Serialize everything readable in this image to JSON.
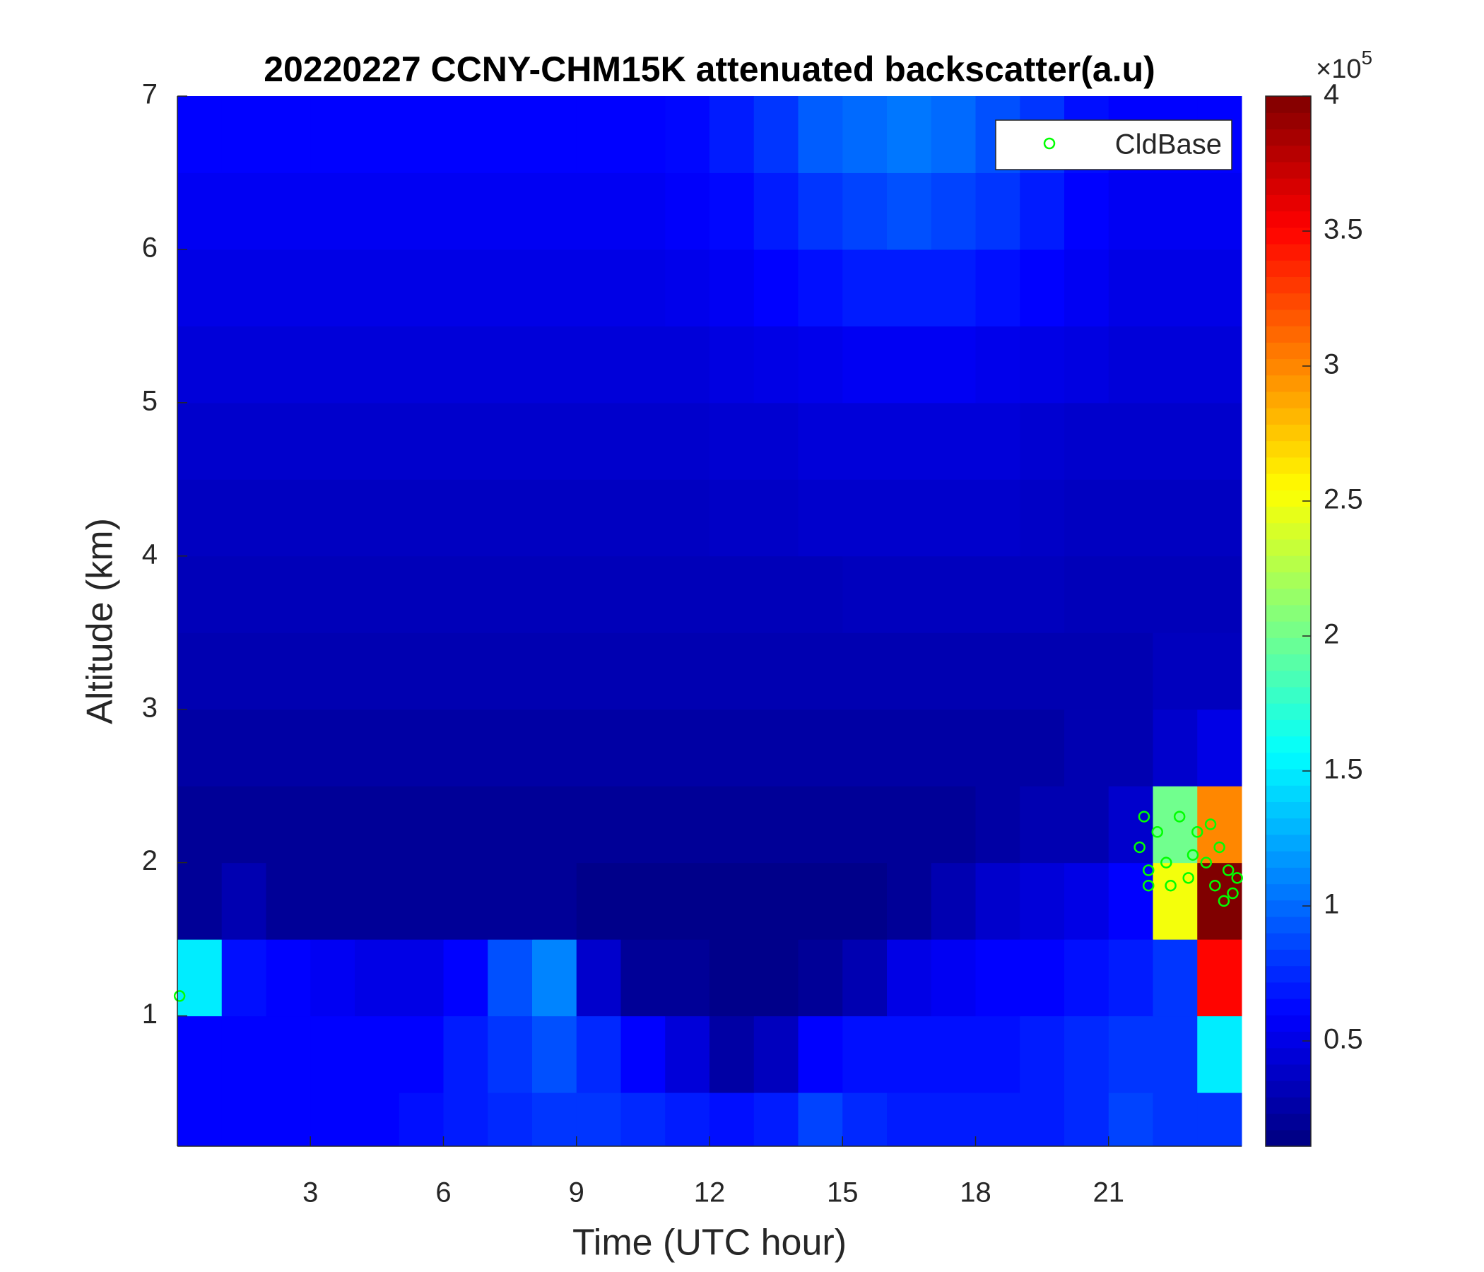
{
  "chart_data": {
    "type": "heatmap",
    "title": "20220227 CCNY-CHM15K attenuated backscatter(a.u)",
    "xlabel": "Time (UTC hour)",
    "ylabel": "Altitude (km)",
    "xlim": [
      0,
      24
    ],
    "xticks": [
      3,
      6,
      9,
      12,
      15,
      18,
      21
    ],
    "ylim": [
      0.15,
      7
    ],
    "yticks": [
      1,
      2,
      3,
      4,
      5,
      6,
      7
    ],
    "x_edges": [
      0,
      1,
      2,
      3,
      4,
      5,
      6,
      7,
      8,
      9,
      10,
      11,
      12,
      13,
      14,
      15,
      16,
      17,
      18,
      19,
      20,
      21,
      22,
      23,
      24
    ],
    "y_edges": [
      0.15,
      0.5,
      1,
      1.5,
      2,
      2.5,
      3,
      3.5,
      4,
      4.5,
      5,
      5.5,
      6,
      6.5,
      7
    ],
    "z": [
      [
        0.6,
        0.6,
        0.6,
        0.6,
        0.6,
        0.65,
        0.7,
        0.75,
        0.8,
        0.8,
        0.75,
        0.7,
        0.65,
        0.7,
        0.85,
        0.75,
        0.7,
        0.7,
        0.7,
        0.7,
        0.75,
        0.85,
        0.8,
        0.8
      ],
      [
        0.6,
        0.6,
        0.6,
        0.6,
        0.6,
        0.6,
        0.7,
        0.8,
        0.9,
        0.75,
        0.6,
        0.45,
        0.25,
        0.35,
        0.6,
        0.65,
        0.65,
        0.65,
        0.65,
        0.7,
        0.75,
        0.8,
        0.8,
        1.5
      ],
      [
        1.5,
        0.65,
        0.6,
        0.55,
        0.5,
        0.5,
        0.6,
        0.9,
        1.1,
        0.4,
        0.2,
        0.2,
        0.15,
        0.15,
        0.2,
        0.3,
        0.5,
        0.55,
        0.6,
        0.6,
        0.65,
        0.7,
        0.8,
        3.5
      ],
      [
        0.2,
        0.3,
        0.2,
        0.2,
        0.2,
        0.2,
        0.2,
        0.2,
        0.2,
        0.15,
        0.15,
        0.15,
        0.15,
        0.15,
        0.15,
        0.15,
        0.2,
        0.3,
        0.4,
        0.45,
        0.5,
        0.6,
        2.5,
        4
      ],
      [
        0.2,
        0.2,
        0.2,
        0.2,
        0.2,
        0.2,
        0.2,
        0.2,
        0.2,
        0.2,
        0.2,
        0.2,
        0.2,
        0.2,
        0.2,
        0.2,
        0.2,
        0.2,
        0.25,
        0.3,
        0.3,
        0.4,
        2,
        3
      ],
      [
        0.25,
        0.25,
        0.25,
        0.25,
        0.25,
        0.25,
        0.25,
        0.25,
        0.25,
        0.25,
        0.25,
        0.25,
        0.25,
        0.25,
        0.25,
        0.25,
        0.25,
        0.25,
        0.25,
        0.25,
        0.3,
        0.3,
        0.4,
        0.5
      ],
      [
        0.3,
        0.3,
        0.3,
        0.3,
        0.3,
        0.3,
        0.3,
        0.3,
        0.3,
        0.3,
        0.3,
        0.3,
        0.3,
        0.3,
        0.3,
        0.3,
        0.3,
        0.3,
        0.3,
        0.3,
        0.3,
        0.3,
        0.35,
        0.35
      ],
      [
        0.33,
        0.33,
        0.33,
        0.33,
        0.33,
        0.33,
        0.33,
        0.33,
        0.33,
        0.33,
        0.33,
        0.33,
        0.33,
        0.33,
        0.33,
        0.35,
        0.35,
        0.35,
        0.35,
        0.35,
        0.33,
        0.33,
        0.33,
        0.33
      ],
      [
        0.36,
        0.36,
        0.36,
        0.36,
        0.36,
        0.36,
        0.36,
        0.36,
        0.36,
        0.36,
        0.36,
        0.36,
        0.38,
        0.38,
        0.4,
        0.4,
        0.4,
        0.4,
        0.4,
        0.38,
        0.36,
        0.36,
        0.36,
        0.36
      ],
      [
        0.4,
        0.4,
        0.4,
        0.4,
        0.4,
        0.4,
        0.4,
        0.4,
        0.4,
        0.4,
        0.4,
        0.4,
        0.42,
        0.42,
        0.45,
        0.45,
        0.45,
        0.45,
        0.45,
        0.42,
        0.4,
        0.4,
        0.4,
        0.4
      ],
      [
        0.45,
        0.45,
        0.45,
        0.45,
        0.45,
        0.45,
        0.45,
        0.45,
        0.45,
        0.45,
        0.45,
        0.45,
        0.48,
        0.5,
        0.52,
        0.55,
        0.55,
        0.55,
        0.52,
        0.5,
        0.48,
        0.45,
        0.45,
        0.45
      ],
      [
        0.5,
        0.5,
        0.5,
        0.5,
        0.5,
        0.5,
        0.5,
        0.5,
        0.5,
        0.5,
        0.5,
        0.52,
        0.55,
        0.6,
        0.65,
        0.7,
        0.7,
        0.7,
        0.65,
        0.6,
        0.55,
        0.5,
        0.5,
        0.5
      ],
      [
        0.55,
        0.55,
        0.55,
        0.55,
        0.55,
        0.55,
        0.55,
        0.55,
        0.55,
        0.55,
        0.55,
        0.58,
        0.62,
        0.7,
        0.8,
        0.85,
        0.9,
        0.85,
        0.8,
        0.7,
        0.6,
        0.55,
        0.55,
        0.55
      ],
      [
        0.6,
        0.6,
        0.6,
        0.6,
        0.6,
        0.6,
        0.6,
        0.6,
        0.6,
        0.6,
        0.6,
        0.62,
        0.7,
        0.8,
        0.95,
        1.0,
        1.05,
        1.0,
        0.9,
        0.8,
        0.65,
        0.6,
        0.6,
        0.6
      ]
    ],
    "colormap": "jet",
    "clim": [
      0.11,
      4
    ],
    "cticks": [
      0.5,
      1,
      1.5,
      2,
      2.5,
      3,
      3.5,
      4
    ],
    "cmultiplier": {
      "base": "×10",
      "exponent": "5"
    },
    "legend": "northeast",
    "series": [
      {
        "name": "CldBase",
        "color": "#00ff00",
        "type": "scatter",
        "x": [
          0.05,
          21.7,
          21.8,
          21.9,
          22.1,
          22.3,
          22.6,
          22.8,
          23.0,
          23.2,
          23.4,
          23.5,
          23.6,
          23.7,
          23.8,
          23.9,
          22.9,
          23.3,
          21.9,
          22.4
        ],
        "y": [
          1.13,
          2.1,
          2.3,
          1.95,
          2.2,
          2.0,
          2.3,
          1.9,
          2.2,
          2.0,
          1.85,
          2.1,
          1.75,
          1.95,
          1.8,
          1.9,
          2.05,
          2.25,
          1.85,
          1.85
        ]
      }
    ]
  }
}
